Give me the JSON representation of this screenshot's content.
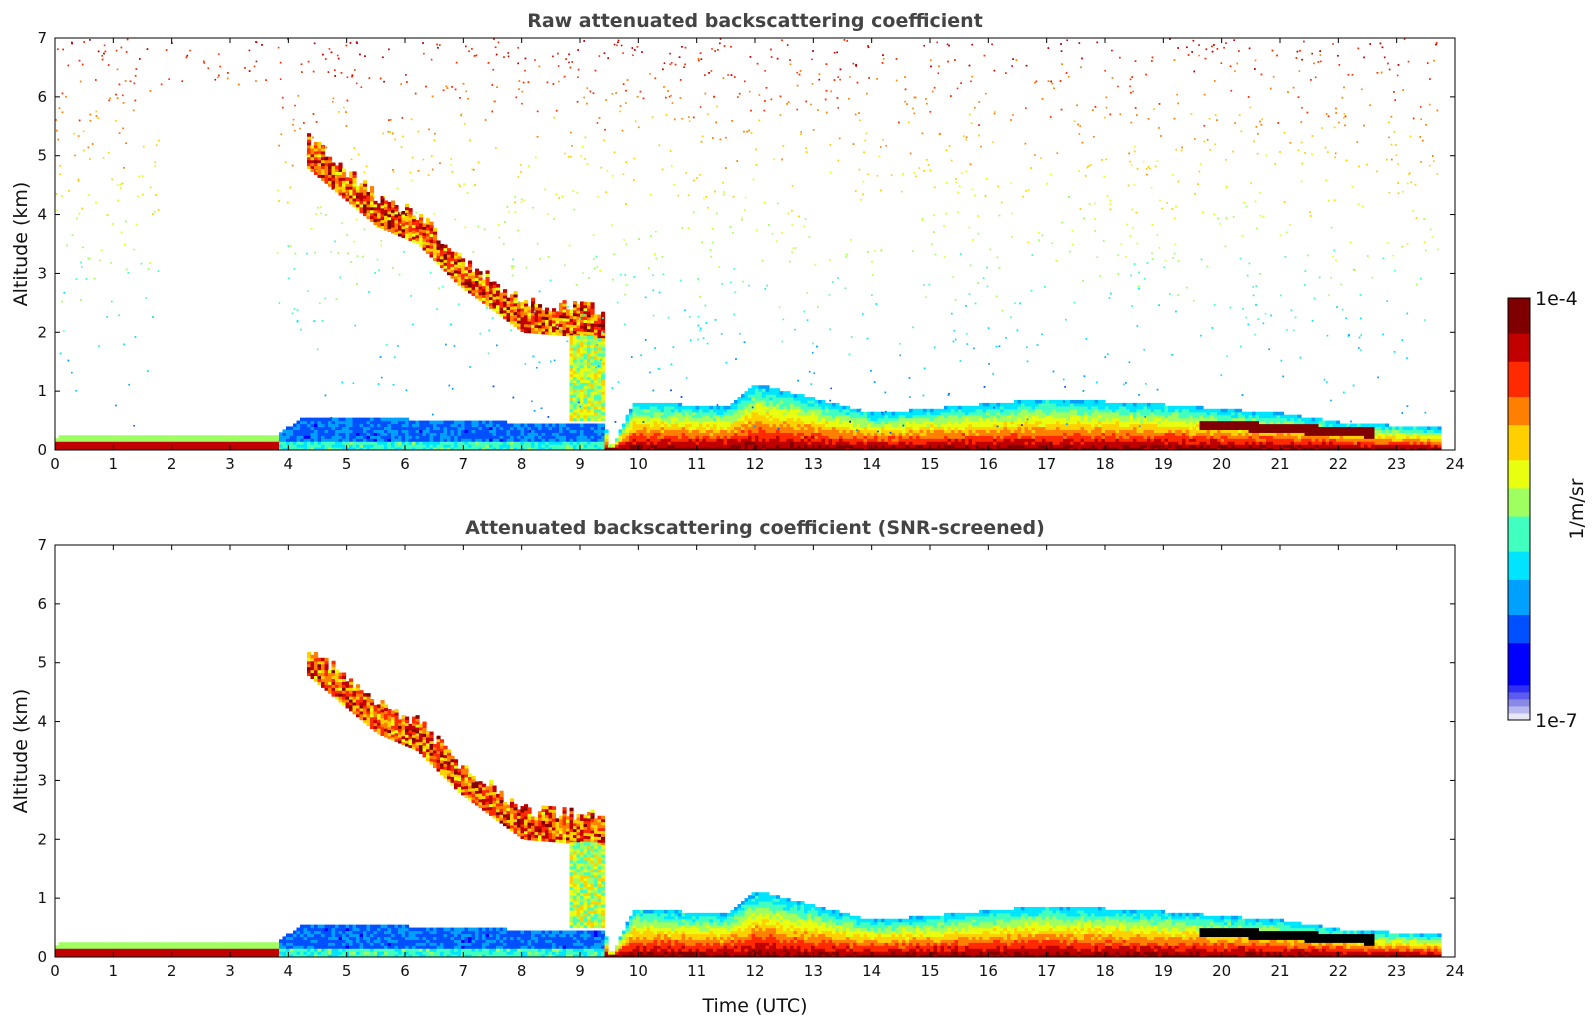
{
  "colors": {
    "jet": [
      "#0000ff",
      "#0050ff",
      "#00a0ff",
      "#00e5ff",
      "#40ffbf",
      "#a0ff60",
      "#e8ff10",
      "#ffd000",
      "#ff8000",
      "#ff2a00",
      "#c00000",
      "#800000"
    ],
    "colorbar_low": [
      "#e6e6f5",
      "#b8b8ee",
      "#8a8ae6",
      "#5c5cf0",
      "#2e2ef5",
      "#0000ff"
    ],
    "title_color": "#444444"
  },
  "chart_data": [
    {
      "type": "heatmap",
      "title": "Raw attenuated backscattering coefficient",
      "xlabel": "",
      "ylabel": "Altitude (km)",
      "xlim": [
        0,
        24
      ],
      "ylim": [
        0,
        7
      ],
      "xticks": [
        "0",
        "1",
        "2",
        "3",
        "4",
        "5",
        "6",
        "7",
        "8",
        "9",
        "10",
        "11",
        "12",
        "13",
        "14",
        "15",
        "16",
        "17",
        "18",
        "19",
        "20",
        "21",
        "22",
        "23",
        "24"
      ],
      "yticks": [
        "0",
        "1",
        "2",
        "3",
        "4",
        "5",
        "6",
        "7"
      ],
      "data_end_hour": 23.7,
      "features": {
        "surface_layer_top_km": [
          [
            0,
            0.2
          ],
          [
            3.8,
            0.25
          ],
          [
            4.2,
            0.5
          ],
          [
            6,
            0.5
          ],
          [
            9.4,
            0.4
          ],
          [
            9.5,
            0
          ],
          [
            9.9,
            0.8
          ],
          [
            11.5,
            0.7
          ],
          [
            12,
            1.1
          ],
          [
            14,
            0.6
          ],
          [
            17,
            0.85
          ],
          [
            19,
            0.75
          ],
          [
            21,
            0.6
          ],
          [
            22,
            0.45
          ],
          [
            23.7,
            0.35
          ]
        ],
        "elevated_cloud_base_km": [
          [
            4.3,
            4.8
          ],
          [
            5.5,
            3.8
          ],
          [
            6.2,
            3.5
          ],
          [
            6.9,
            2.8
          ],
          [
            8,
            2.0
          ],
          [
            9.3,
            1.9
          ]
        ],
        "noise_top_km": 7
      }
    },
    {
      "type": "heatmap",
      "title": "Attenuated backscattering coefficient (SNR-screened)",
      "xlabel": "Time (UTC)",
      "ylabel": "Altitude (km)",
      "xlim": [
        0,
        24
      ],
      "ylim": [
        0,
        7
      ],
      "xticks": [
        "0",
        "1",
        "2",
        "3",
        "4",
        "5",
        "6",
        "7",
        "8",
        "9",
        "10",
        "11",
        "12",
        "13",
        "14",
        "15",
        "16",
        "17",
        "18",
        "19",
        "20",
        "21",
        "22",
        "23",
        "24"
      ],
      "yticks": [
        "0",
        "1",
        "2",
        "3",
        "4",
        "5",
        "6",
        "7"
      ],
      "data_end_hour": 23.7
    }
  ],
  "colorbar": {
    "label": "1/m/sr",
    "max_label": "1e-4",
    "min_label": "1e-7",
    "scale": "log",
    "range": [
      1e-07,
      0.0001
    ]
  }
}
